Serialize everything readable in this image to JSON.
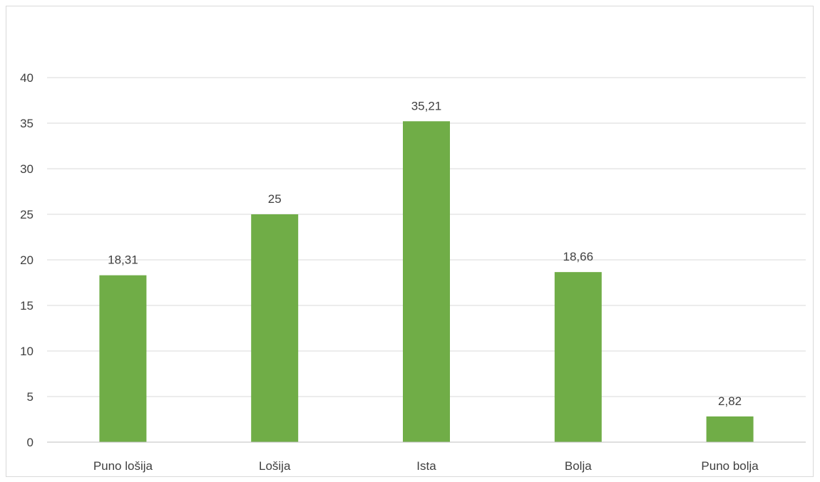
{
  "chart_data": {
    "type": "bar",
    "categories": [
      "Puno lošija",
      "Lošija",
      "Ista",
      "Bolja",
      "Puno bolja"
    ],
    "values": [
      18.31,
      25,
      35.21,
      18.66,
      2.82
    ],
    "data_labels": [
      "18,31",
      "25",
      "35,21",
      "18,66",
      "2,82"
    ],
    "title": "",
    "xlabel": "",
    "ylabel": "",
    "ylim": [
      0,
      40
    ],
    "yticks": [
      0,
      5,
      10,
      15,
      20,
      25,
      30,
      35,
      40
    ],
    "grid": true,
    "legend": "none",
    "bar_color": "#70ad47",
    "grid_color": "#d9d9d9",
    "text_color": "#404040"
  }
}
